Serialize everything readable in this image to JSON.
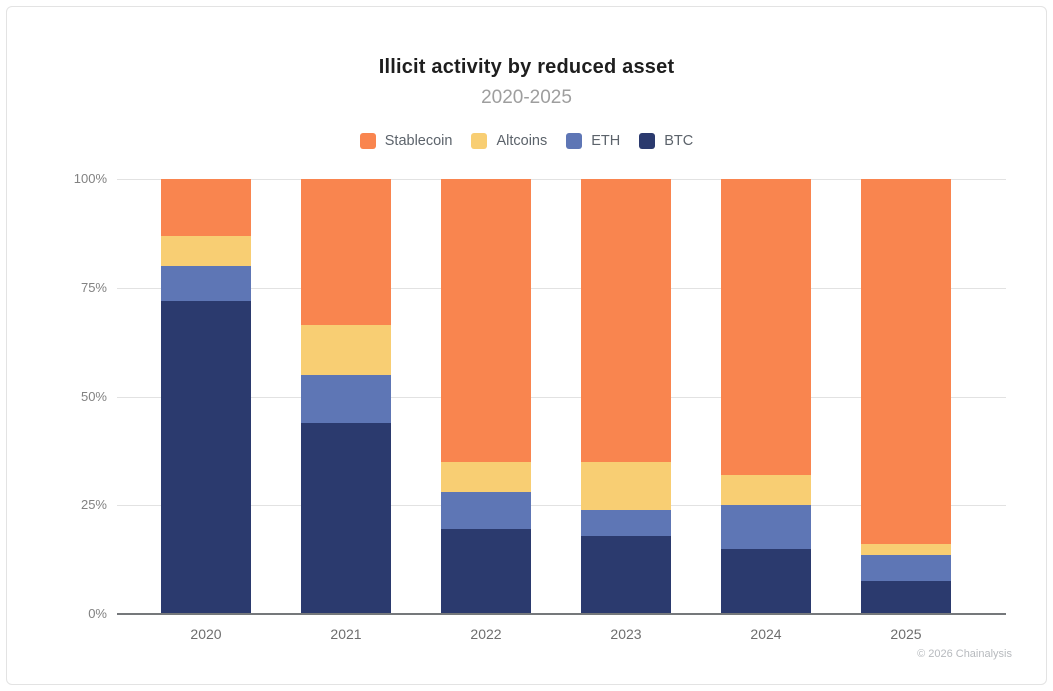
{
  "header": {
    "title": "Illicit activity by reduced asset",
    "subtitle": "2020-2025"
  },
  "legend": [
    {
      "label": "Stablecoin",
      "color": "#f9854f"
    },
    {
      "label": "Altcoins",
      "color": "#f8ce73"
    },
    {
      "label": "ETH",
      "color": "#5e76b5"
    },
    {
      "label": "BTC",
      "color": "#2b3a6e"
    }
  ],
  "footer": {
    "copyright": "© 2026 Chainalysis"
  },
  "chart_data": {
    "type": "bar",
    "stacked": true,
    "title": "Illicit activity by reduced asset",
    "subtitle": "2020-2025",
    "categories": [
      "2020",
      "2021",
      "2022",
      "2023",
      "2024",
      "2025"
    ],
    "series": [
      {
        "name": "BTC",
        "color": "#2b3a6e",
        "values": [
          72,
          44,
          19.5,
          18,
          15,
          7.5
        ]
      },
      {
        "name": "ETH",
        "color": "#5e76b5",
        "values": [
          8,
          11,
          8.5,
          6,
          10,
          6
        ]
      },
      {
        "name": "Altcoins",
        "color": "#f8ce73",
        "values": [
          7,
          11.5,
          7,
          11,
          7,
          2.5
        ]
      },
      {
        "name": "Stablecoin",
        "color": "#f9854f",
        "values": [
          13,
          33.5,
          65,
          65,
          68,
          84
        ]
      }
    ],
    "xlabel": "",
    "ylabel": "",
    "ylim": [
      0,
      100
    ],
    "yticks": [
      {
        "value": 0,
        "label": "0%"
      },
      {
        "value": 25,
        "label": "25%"
      },
      {
        "value": 50,
        "label": "50%"
      },
      {
        "value": 75,
        "label": "75%"
      },
      {
        "value": 100,
        "label": "100%"
      }
    ],
    "grid": true,
    "legend_position": "top"
  }
}
